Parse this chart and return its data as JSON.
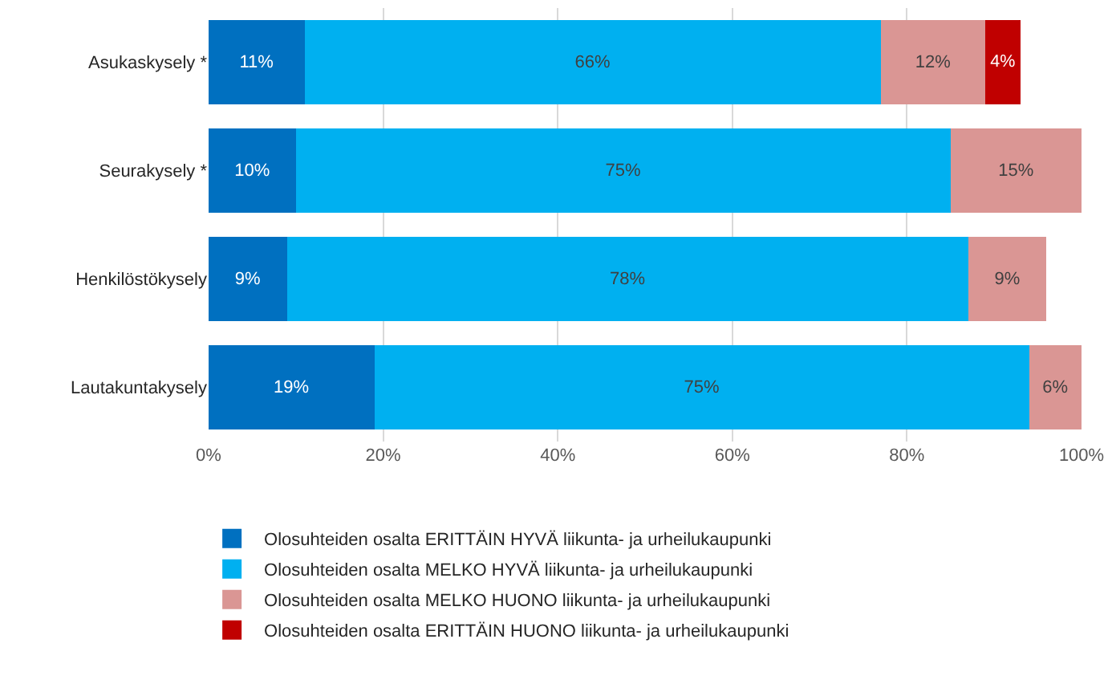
{
  "chart_data": {
    "type": "bar",
    "orientation": "horizontal",
    "stacked": true,
    "grid": "x",
    "legend": "bottom",
    "categories": [
      "Asukaskysely *",
      "Seurakysely *",
      "Henkilöstökysely",
      "Lautakuntakysely"
    ],
    "xlim": [
      0,
      100
    ],
    "xticks": [
      {
        "value": 0,
        "label": "0%"
      },
      {
        "value": 20,
        "label": "20%"
      },
      {
        "value": 40,
        "label": "40%"
      },
      {
        "value": 60,
        "label": "60%"
      },
      {
        "value": 80,
        "label": "80%"
      },
      {
        "value": 100,
        "label": "100%"
      }
    ],
    "series": [
      {
        "name": "Olosuhteiden osalta ERITTÄIN HYVÄ liikunta- ja urheilukaupunki",
        "color": "#0070c0",
        "values": [
          11,
          10,
          9,
          19
        ],
        "value_labels": [
          "11%",
          "10%",
          "9%",
          "19%"
        ]
      },
      {
        "name": "Olosuhteiden osalta MELKO HYVÄ liikunta- ja urheilukaupunki",
        "color": "#00b0f0",
        "values": [
          66,
          75,
          78,
          75
        ],
        "value_labels": [
          "66%",
          "75%",
          "78%",
          "75%"
        ]
      },
      {
        "name": "Olosuhteiden osalta MELKO HUONO liikunta- ja urheilukaupunki",
        "color": "#da9694",
        "values": [
          12,
          15,
          9,
          6
        ],
        "value_labels": [
          "12%",
          "15%",
          "9%",
          "6%"
        ]
      },
      {
        "name": "Olosuhteiden osalta ERITTÄIN HUONO liikunta- ja urheilukaupunki",
        "color": "#c00000",
        "values": [
          4,
          null,
          null,
          null
        ],
        "value_labels": [
          "4%",
          null,
          null,
          null
        ]
      }
    ]
  }
}
